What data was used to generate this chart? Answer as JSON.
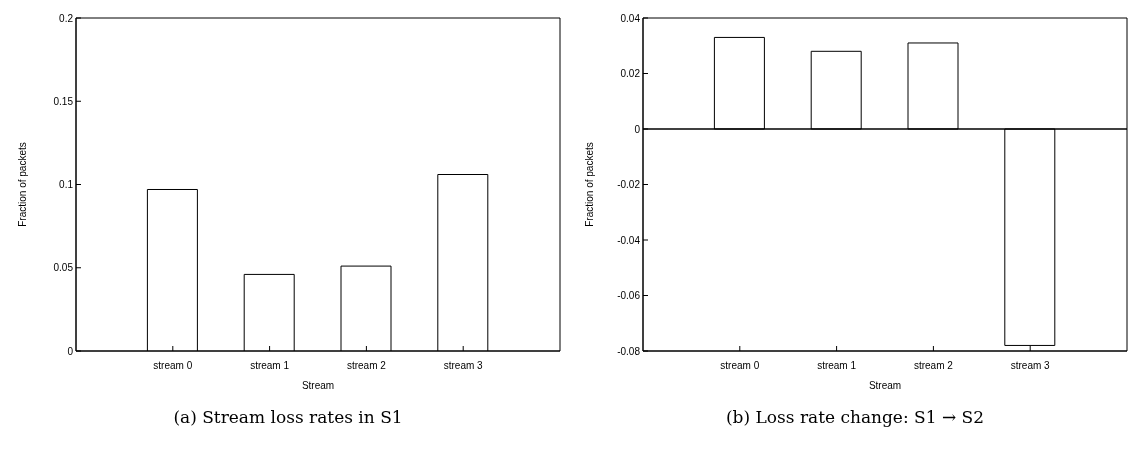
{
  "chart_data": [
    {
      "type": "bar",
      "title": "(a) Stream loss rates in S1",
      "xlabel": "Stream",
      "ylabel": "Fraction of packets",
      "categories": [
        "stream 0",
        "stream 1",
        "stream 2",
        "stream 3"
      ],
      "values": [
        0.097,
        0.046,
        0.051,
        0.106
      ],
      "color": "#ffffff",
      "ylim": [
        0,
        0.2
      ],
      "yticks": [
        0,
        0.05,
        0.1,
        0.15,
        0.2
      ],
      "grid": false,
      "legend": false
    },
    {
      "type": "bar",
      "title": "(b) Loss rate change: S1 → S2",
      "xlabel": "Stream",
      "ylabel": "Fraction of packets",
      "categories": [
        "stream 0",
        "stream 1",
        "stream 2",
        "stream 3"
      ],
      "values": [
        0.033,
        0.028,
        0.031,
        -0.078
      ],
      "color": "#ffffff",
      "ylim": [
        -0.08,
        0.04
      ],
      "yticks": [
        -0.08,
        -0.06,
        -0.04,
        -0.02,
        0,
        0.02,
        0.04
      ],
      "grid": false,
      "legend": false,
      "ref_lines": [
        {
          "axis": "y",
          "value": 0
        }
      ]
    }
  ]
}
